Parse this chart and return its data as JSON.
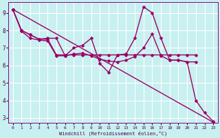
{
  "bg_color": "#c8f0f0",
  "grid_color": "#ffffff",
  "line_color": "#990066",
  "xlabel": "Windchill (Refroidissement éolien,°C)",
  "xlim": [
    -0.5,
    23.5
  ],
  "ylim": [
    2.7,
    9.6
  ],
  "yticks": [
    3,
    4,
    5,
    6,
    7,
    8,
    9
  ],
  "xticks": [
    0,
    1,
    2,
    3,
    4,
    5,
    6,
    7,
    8,
    9,
    10,
    11,
    12,
    13,
    14,
    15,
    16,
    17,
    18,
    19,
    20,
    21,
    22,
    23
  ],
  "series": [
    {
      "x": [
        0,
        1,
        2,
        3,
        4,
        5,
        6,
        7,
        8,
        9,
        10,
        11,
        12,
        13,
        14,
        15,
        16,
        17,
        18,
        19,
        20,
        21,
        22,
        23
      ],
      "y": [
        9.2,
        8.0,
        7.75,
        7.5,
        7.55,
        7.55,
        6.55,
        7.0,
        7.15,
        7.55,
        6.1,
        5.6,
        6.6,
        6.65,
        7.55,
        9.35,
        9.0,
        7.55,
        6.3,
        6.3,
        6.2,
        4.0,
        3.3,
        2.8
      ],
      "marker": "D",
      "markersize": 2.5,
      "linewidth": 1.0
    },
    {
      "x": [
        0,
        1,
        2,
        3,
        4,
        5,
        6,
        7,
        8,
        9,
        10,
        11,
        12,
        13,
        14,
        15,
        16,
        17,
        18,
        19,
        20,
        21
      ],
      "y": [
        9.2,
        7.95,
        7.55,
        7.45,
        7.4,
        6.55,
        6.55,
        6.65,
        6.7,
        6.55,
        6.35,
        6.25,
        6.2,
        6.3,
        6.5,
        7.0,
        7.8,
        6.55,
        6.3,
        6.3,
        6.2,
        6.2
      ],
      "marker": "D",
      "markersize": 2.5,
      "linewidth": 1.0
    },
    {
      "x": [
        0,
        1,
        2,
        3,
        4,
        5,
        6,
        7,
        8,
        9,
        10,
        11,
        12,
        13,
        14,
        15,
        16,
        17,
        18,
        19,
        20,
        21
      ],
      "y": [
        9.2,
        8.0,
        7.75,
        7.5,
        7.5,
        6.6,
        6.6,
        6.6,
        6.6,
        6.6,
        6.6,
        6.6,
        6.6,
        6.6,
        6.6,
        6.6,
        6.6,
        6.6,
        6.6,
        6.6,
        6.6,
        6.6
      ],
      "marker": "D",
      "markersize": 2.5,
      "linewidth": 1.0
    },
    {
      "x": [
        0,
        23
      ],
      "y": [
        9.2,
        2.75
      ],
      "marker": "D",
      "markersize": 2.5,
      "linewidth": 1.0
    }
  ]
}
